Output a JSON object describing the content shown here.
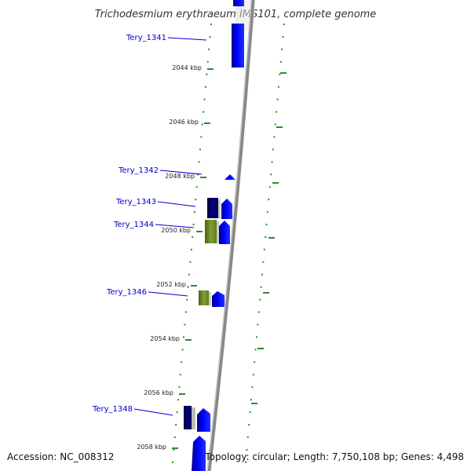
{
  "title": "Trichodesmium erythraeum IMS101, complete genome",
  "footer": {
    "accession": "Accession: NC_008312",
    "summary": "Topology: circular; Length: 7,750,108 bp; Genes: 4,498"
  },
  "scale_labels": [
    "2044 kbp",
    "2046 kbp",
    "2048 kbp",
    "2050 kbp",
    "2052 kbp",
    "2054 kbp",
    "2056 kbp",
    "2058 kbp"
  ],
  "gene_labels": [
    "Tery_1341",
    "Tery_1342",
    "Tery_1343",
    "Tery_1344",
    "Tery_1346",
    "Tery_1348"
  ],
  "colors": {
    "backbone": "#888888",
    "tick": "#2e8b2e",
    "label": "#0000cc",
    "cds_blue": "#0000ee",
    "cds_navy": "#000070",
    "cds_olive": "#6b8e23"
  }
}
